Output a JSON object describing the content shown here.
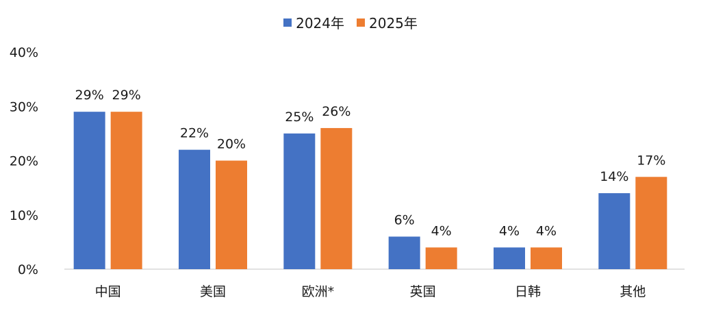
{
  "chart_data": {
    "type": "bar",
    "categories": [
      "中国",
      "美国",
      "欧洲*",
      "英国",
      "日韩",
      "其他"
    ],
    "series": [
      {
        "name": "2024年",
        "color": "#4472C4",
        "values": [
          29,
          22,
          25,
          6,
          4,
          14
        ]
      },
      {
        "name": "2025年",
        "color": "#ED7D31",
        "values": [
          29,
          20,
          26,
          4,
          4,
          17
        ]
      }
    ],
    "data_labels": [
      [
        "29%",
        "22%",
        "25%",
        "6%",
        "4%",
        "14%"
      ],
      [
        "29%",
        "20%",
        "26%",
        "4%",
        "4%",
        "17%"
      ]
    ],
    "yticks": [
      "0%",
      "10%",
      "20%",
      "30%",
      "40%"
    ],
    "ylim": [
      0,
      40
    ],
    "grid": false,
    "legend_position": "top-center"
  }
}
